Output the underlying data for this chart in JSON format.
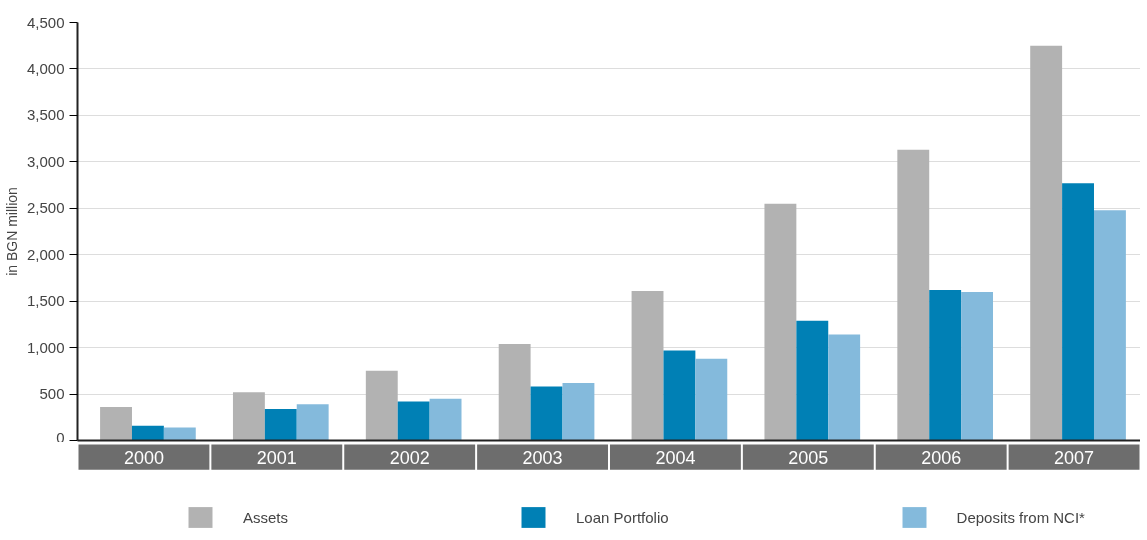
{
  "chart_data": {
    "type": "bar",
    "ylabel": "in BGN million",
    "categories": [
      "2000",
      "2001",
      "2002",
      "2003",
      "2004",
      "2005",
      "2006",
      "2007"
    ],
    "series": [
      {
        "name": "Assets",
        "color": "#b2b2b2",
        "values": [
          360,
          520,
          750,
          1040,
          1610,
          2550,
          3130,
          4250
        ]
      },
      {
        "name": "Loan Portfolio",
        "color": "#0080b5",
        "values": [
          160,
          340,
          420,
          580,
          970,
          1290,
          1620,
          2770
        ]
      },
      {
        "name": "Deposits from NCI*",
        "color": "#84badc",
        "values": [
          140,
          390,
          450,
          620,
          880,
          1140,
          1600,
          2480
        ]
      }
    ],
    "ylim": [
      0,
      4500
    ],
    "yticks": [
      0,
      500,
      {
        "value": 1000,
        "label": "1,000"
      },
      {
        "value": 1500,
        "label": "1,500"
      },
      {
        "value": 2000,
        "label": "2,000"
      },
      {
        "value": 2500,
        "label": "2,500"
      },
      {
        "value": 3000,
        "label": "3,000"
      },
      {
        "value": 3500,
        "label": "3,500"
      },
      {
        "value": 4000,
        "label": "4,000"
      },
      {
        "value": 4500,
        "label": "4,500"
      }
    ],
    "grid": "y",
    "legend": "bottom"
  }
}
